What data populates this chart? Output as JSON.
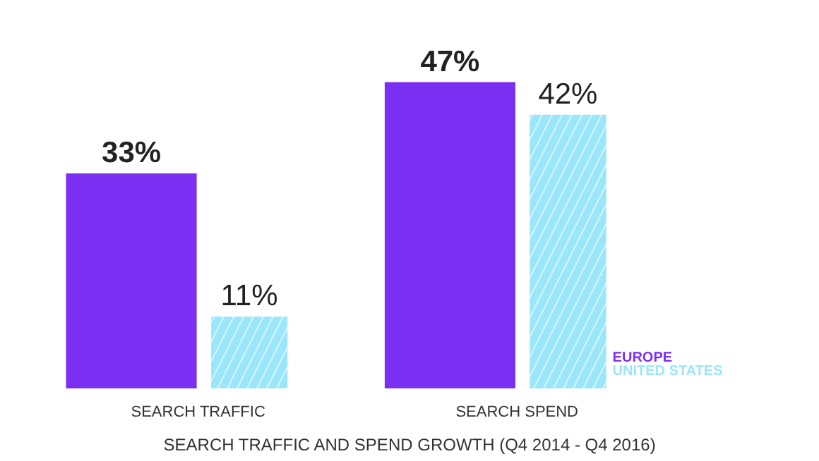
{
  "chart_data": {
    "type": "bar",
    "title": "SEARCH TRAFFIC AND SPEND GROWTH (Q4 2014 - Q4 2016)",
    "categories": [
      "SEARCH TRAFFIC",
      "SEARCH SPEND"
    ],
    "series": [
      {
        "name": "EUROPE",
        "color": "#7b2ff2",
        "values": [
          33,
          47
        ],
        "value_labels": [
          "33%",
          "47%"
        ]
      },
      {
        "name": "UNITED STATES",
        "color": "#9ae6fb",
        "values": [
          11,
          42
        ],
        "value_labels": [
          "11%",
          "42%"
        ]
      }
    ],
    "legend": "bottom right",
    "grid": false
  }
}
